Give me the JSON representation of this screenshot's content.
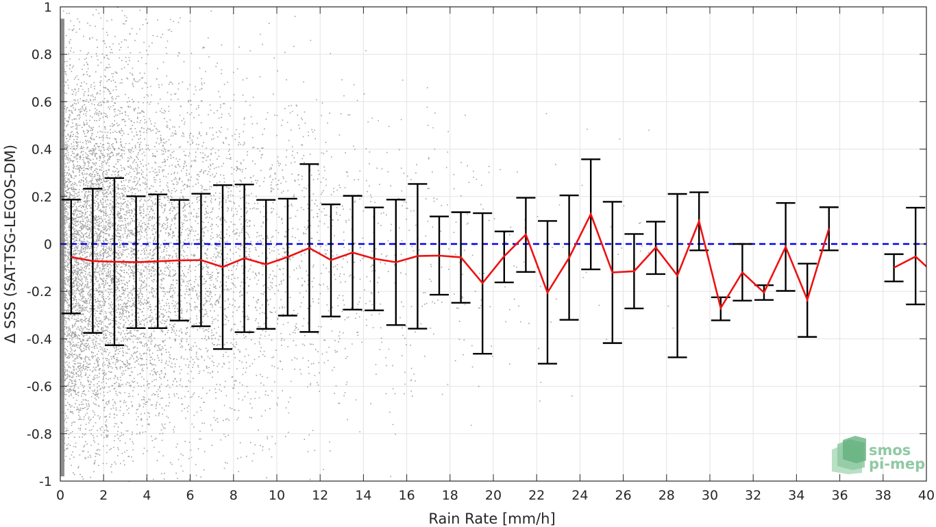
{
  "chart_data": {
    "type": "scatter",
    "xlabel": "Rain Rate [mm/h]",
    "ylabel": "Δ SSS (SAT-TSG-LEGOS-DM)",
    "xlim": [
      0,
      40
    ],
    "ylim": [
      -1,
      1
    ],
    "x_ticks": [
      0,
      2,
      4,
      6,
      8,
      10,
      12,
      14,
      16,
      18,
      20,
      22,
      24,
      26,
      28,
      30,
      32,
      34,
      36,
      38,
      40
    ],
    "y_ticks": [
      -1,
      -0.8,
      -0.6,
      -0.4,
      -0.2,
      0,
      0.2,
      0.4,
      0.6,
      0.8,
      1
    ],
    "y_tick_labels": [
      "-1",
      "-0.8",
      "-0.6",
      "-0.4",
      "-0.2",
      "0",
      "0.2",
      "0.4",
      "0.6",
      "0.8",
      "1"
    ],
    "grid": true,
    "zero_line": {
      "y": 0,
      "style": "dashed",
      "color": "#0000ee"
    },
    "binned_mean": {
      "color": "#ee1111",
      "segments": [
        [
          {
            "x": 0.5,
            "y": -0.055
          },
          {
            "x": 1.5,
            "y": -0.072
          },
          {
            "x": 2.5,
            "y": -0.075
          },
          {
            "x": 3.5,
            "y": -0.077
          },
          {
            "x": 4.5,
            "y": -0.073
          },
          {
            "x": 5.5,
            "y": -0.069
          },
          {
            "x": 6.5,
            "y": -0.068
          },
          {
            "x": 7.5,
            "y": -0.097
          },
          {
            "x": 8.5,
            "y": -0.06
          },
          {
            "x": 9.5,
            "y": -0.086
          },
          {
            "x": 10.5,
            "y": -0.055
          },
          {
            "x": 11.5,
            "y": -0.017
          },
          {
            "x": 12.5,
            "y": -0.068
          },
          {
            "x": 13.5,
            "y": -0.036
          },
          {
            "x": 14.5,
            "y": -0.062
          },
          {
            "x": 15.5,
            "y": -0.077
          },
          {
            "x": 16.5,
            "y": -0.051
          },
          {
            "x": 17.5,
            "y": -0.049
          },
          {
            "x": 18.5,
            "y": -0.056
          },
          {
            "x": 19.5,
            "y": -0.165
          },
          {
            "x": 20.5,
            "y": -0.052
          },
          {
            "x": 21.5,
            "y": 0.04
          },
          {
            "x": 22.5,
            "y": -0.205
          },
          {
            "x": 23.5,
            "y": -0.058
          },
          {
            "x": 24.5,
            "y": 0.126
          },
          {
            "x": 25.5,
            "y": -0.12
          },
          {
            "x": 26.5,
            "y": -0.115
          },
          {
            "x": 27.5,
            "y": -0.015
          },
          {
            "x": 28.5,
            "y": -0.133
          },
          {
            "x": 29.5,
            "y": 0.096
          },
          {
            "x": 30.5,
            "y": -0.27
          },
          {
            "x": 31.5,
            "y": -0.12
          },
          {
            "x": 32.5,
            "y": -0.205
          },
          {
            "x": 33.5,
            "y": -0.012
          },
          {
            "x": 34.5,
            "y": -0.235
          },
          {
            "x": 35.5,
            "y": 0.065
          }
        ],
        [
          {
            "x": 38.5,
            "y": -0.1
          },
          {
            "x": 39.5,
            "y": -0.053
          },
          {
            "x": 40.0,
            "y": -0.095
          }
        ]
      ]
    },
    "error_bars": {
      "color": "#000000",
      "bars": [
        {
          "x": 0.5,
          "low": -0.293,
          "high": 0.187
        },
        {
          "x": 1.5,
          "low": -0.375,
          "high": 0.233
        },
        {
          "x": 2.5,
          "low": -0.427,
          "high": 0.278
        },
        {
          "x": 3.5,
          "low": -0.355,
          "high": 0.201
        },
        {
          "x": 4.5,
          "low": -0.355,
          "high": 0.209
        },
        {
          "x": 5.5,
          "low": -0.323,
          "high": 0.186
        },
        {
          "x": 6.5,
          "low": -0.347,
          "high": 0.212
        },
        {
          "x": 7.5,
          "low": -0.443,
          "high": 0.248
        },
        {
          "x": 8.5,
          "low": -0.372,
          "high": 0.251
        },
        {
          "x": 9.5,
          "low": -0.358,
          "high": 0.186
        },
        {
          "x": 10.5,
          "low": -0.302,
          "high": 0.191
        },
        {
          "x": 11.5,
          "low": -0.371,
          "high": 0.337
        },
        {
          "x": 12.5,
          "low": -0.306,
          "high": 0.167
        },
        {
          "x": 13.5,
          "low": -0.277,
          "high": 0.203
        },
        {
          "x": 14.5,
          "low": -0.28,
          "high": 0.154
        },
        {
          "x": 15.5,
          "low": -0.342,
          "high": 0.187
        },
        {
          "x": 16.5,
          "low": -0.357,
          "high": 0.253
        },
        {
          "x": 17.5,
          "low": -0.214,
          "high": 0.116
        },
        {
          "x": 18.5,
          "low": -0.248,
          "high": 0.134
        },
        {
          "x": 19.5,
          "low": -0.463,
          "high": 0.13
        },
        {
          "x": 20.5,
          "low": -0.162,
          "high": 0.053
        },
        {
          "x": 21.5,
          "low": -0.118,
          "high": 0.195
        },
        {
          "x": 22.5,
          "low": -0.505,
          "high": 0.097
        },
        {
          "x": 23.5,
          "low": -0.32,
          "high": 0.205
        },
        {
          "x": 24.5,
          "low": -0.107,
          "high": 0.357
        },
        {
          "x": 25.5,
          "low": -0.418,
          "high": 0.178
        },
        {
          "x": 26.5,
          "low": -0.272,
          "high": 0.042
        },
        {
          "x": 27.5,
          "low": -0.127,
          "high": 0.094
        },
        {
          "x": 28.5,
          "low": -0.478,
          "high": 0.211
        },
        {
          "x": 29.5,
          "low": -0.027,
          "high": 0.218
        },
        {
          "x": 30.5,
          "low": -0.322,
          "high": -0.225
        },
        {
          "x": 31.5,
          "low": -0.239,
          "high": 0.0
        },
        {
          "x": 32.5,
          "low": -0.236,
          "high": -0.174
        },
        {
          "x": 33.5,
          "low": -0.198,
          "high": 0.173
        },
        {
          "x": 34.5,
          "low": -0.392,
          "high": -0.083
        },
        {
          "x": 35.5,
          "low": -0.027,
          "high": 0.155
        },
        {
          "x": 38.5,
          "low": -0.158,
          "high": -0.043
        },
        {
          "x": 39.5,
          "low": -0.255,
          "high": 0.153
        }
      ]
    },
    "scatter": {
      "color": "#808080",
      "description_of_density": "dense point cloud concentrated at low rain rates, thinning with increasing rain rate"
    }
  },
  "logo": {
    "line1": "smos",
    "line2": "pi-mep"
  }
}
